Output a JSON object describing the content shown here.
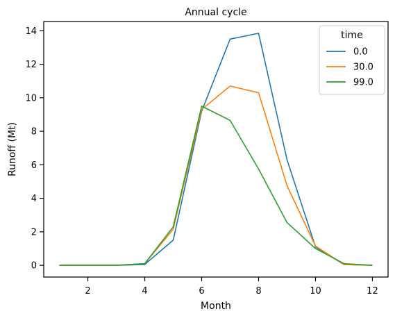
{
  "chart_data": {
    "type": "line",
    "title": "Annual cycle",
    "xlabel": "Month",
    "ylabel": "Runoff (Mt)",
    "x": [
      1,
      2,
      3,
      4,
      5,
      6,
      7,
      8,
      9,
      10,
      11,
      12
    ],
    "xlim": [
      0.45,
      12.55
    ],
    "ylim": [
      -0.7,
      14.55
    ],
    "xticks": [
      2,
      4,
      6,
      8,
      10,
      12
    ],
    "yticks": [
      0,
      2,
      4,
      6,
      8,
      10,
      12,
      14
    ],
    "grid": false,
    "legend": {
      "title": "time",
      "position": "upper right"
    },
    "series": [
      {
        "name": "0.0",
        "color": "#1f77b4",
        "values": [
          0.0,
          0.0,
          0.0,
          0.05,
          1.5,
          9.2,
          13.5,
          13.85,
          6.3,
          1.1,
          0.05,
          0.0
        ]
      },
      {
        "name": "30.0",
        "color": "#ff7f0e",
        "values": [
          0.0,
          0.0,
          0.0,
          0.1,
          2.15,
          9.3,
          10.7,
          10.3,
          4.75,
          1.15,
          0.05,
          0.0
        ]
      },
      {
        "name": "99.0",
        "color": "#2ca02c",
        "values": [
          0.0,
          0.0,
          0.0,
          0.1,
          2.3,
          9.5,
          8.65,
          5.75,
          2.55,
          1.0,
          0.1,
          0.0
        ]
      }
    ]
  }
}
